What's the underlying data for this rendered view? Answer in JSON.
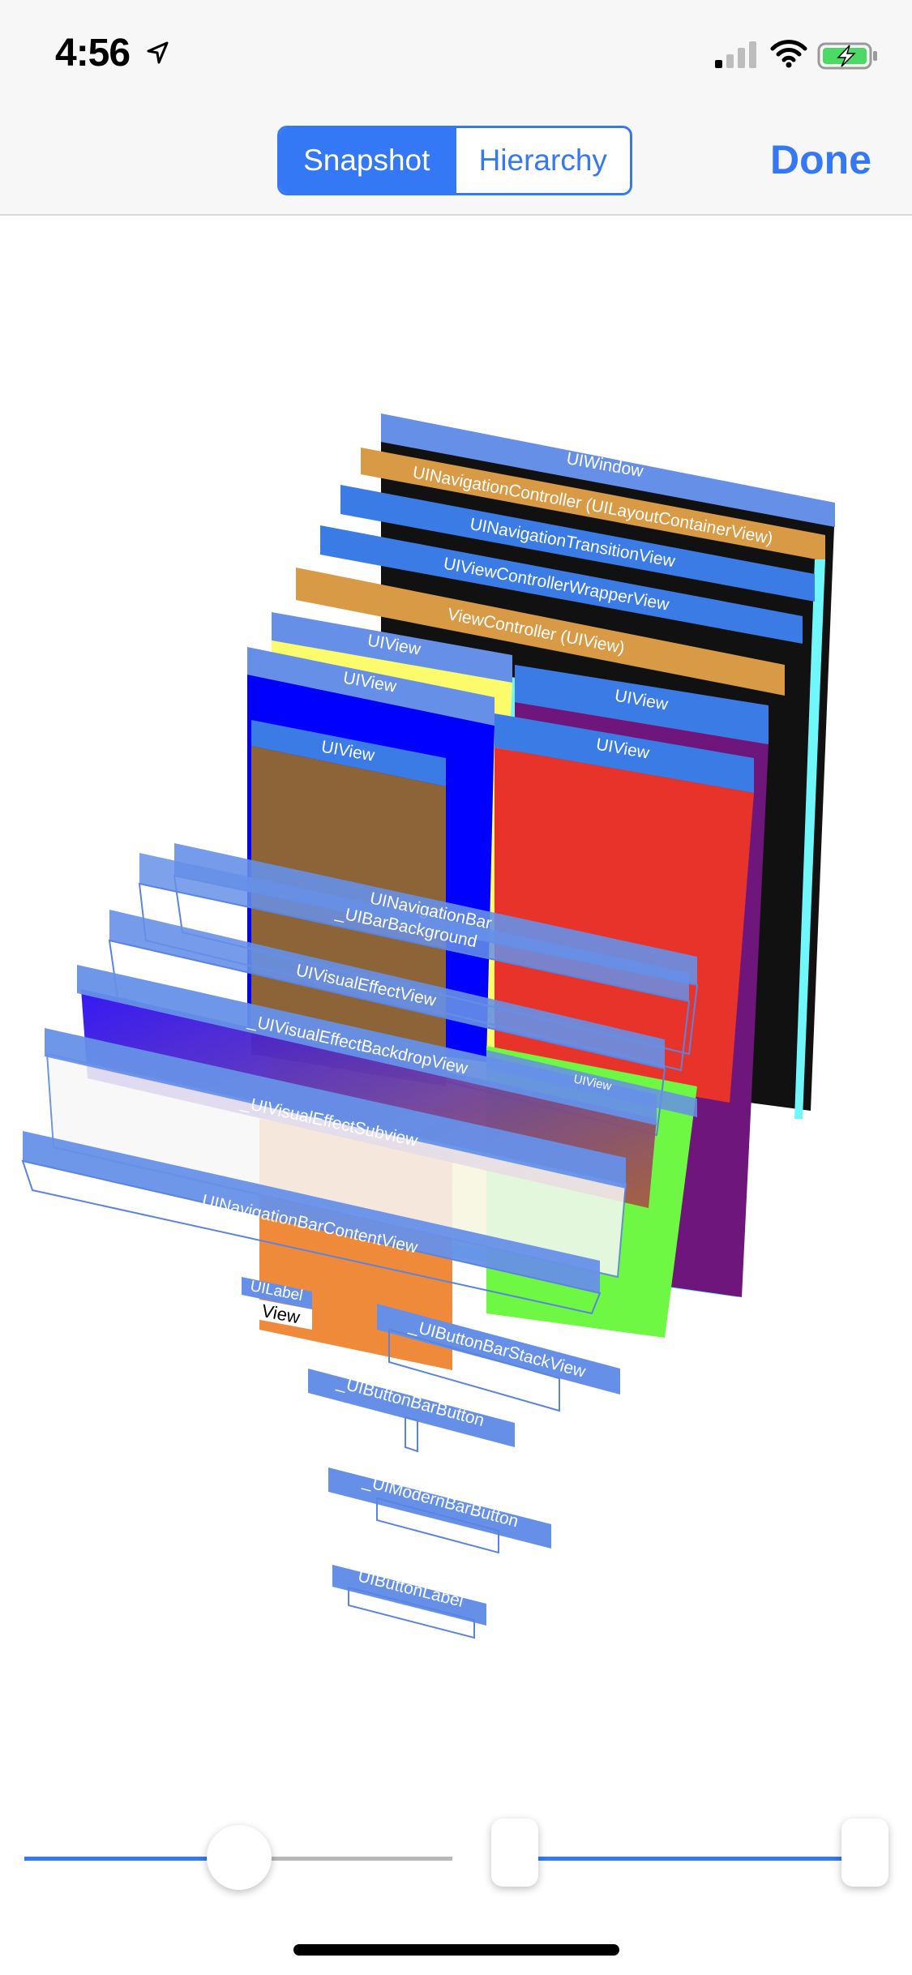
{
  "status": {
    "time": "4:56"
  },
  "nav": {
    "segments": [
      "Snapshot",
      "Hierarchy"
    ],
    "done_label": "Done"
  },
  "layers": [
    "UIWindow",
    "UINavigationController (UILayoutContainerView)",
    "UINavigationTransitionView",
    "UIViewControllerWrapperView",
    "ViewController (UIView)",
    "UIView",
    "UIView",
    "UIView",
    "UIView",
    "UIView",
    "UINavigationBar",
    "_UIBarBackground",
    "UIVisualEffectView",
    "_UIVisualEffectBackdropView",
    "UIView",
    "_UIVisualEffectSubview",
    "_UINavigationBarContentView",
    "UILabel",
    "View",
    "_UIButtonBarStackView",
    "_UIButtonBarButton",
    "_UIModernBarButton",
    "UIButtonLabel"
  ],
  "colors": {
    "accent": "#3478f6",
    "header_blue": "#6690e8",
    "orange_header": "#d89a45",
    "cyan": "#6ff7fb",
    "yellow": "#fbfb6b",
    "blue": "#0000ff",
    "purple": "#6e167b",
    "brown": "#8c6438",
    "red": "#e8332a",
    "green": "#6ff843",
    "orange": "#f08a3b"
  },
  "sliders": {
    "depth_value": 0.5,
    "range_min": 0.0,
    "range_max": 1.0
  }
}
